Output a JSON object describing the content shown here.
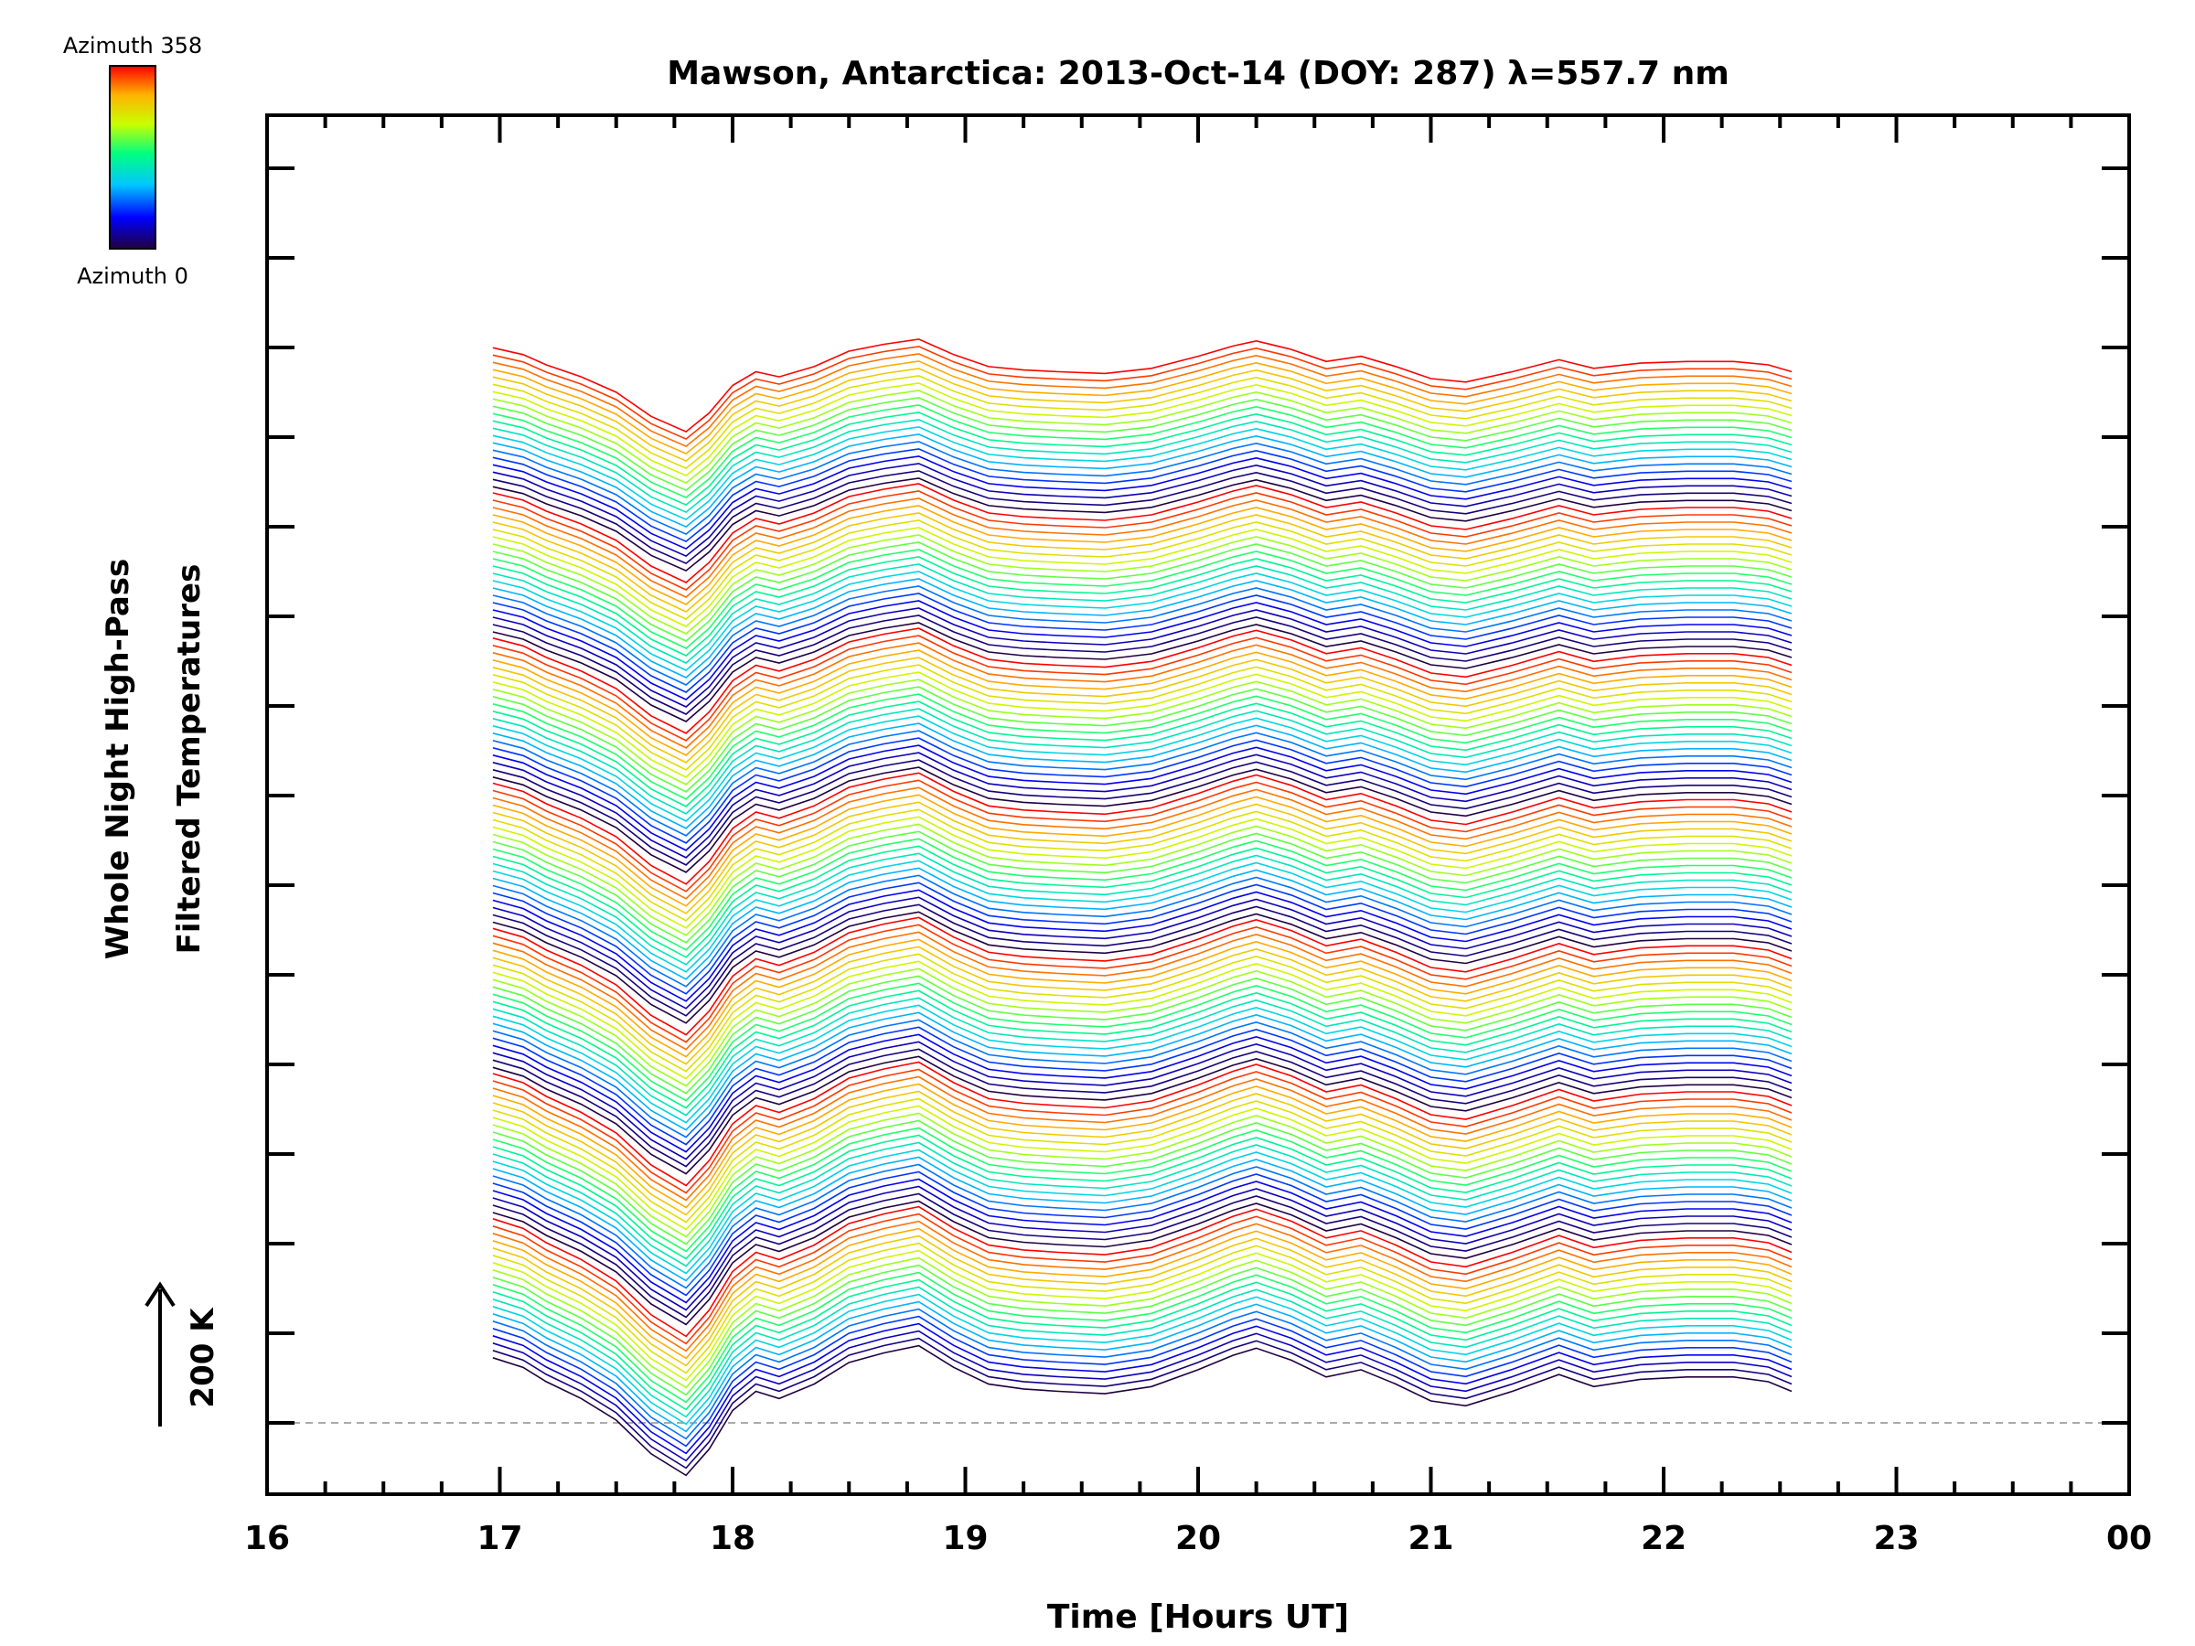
{
  "chart_data": {
    "type": "line",
    "title": "Mawson, Antarctica: 2013-Oct-14 (DOY: 287) λ=557.7 nm",
    "xlabel": "Time [Hours UT]",
    "ylabel": [
      "Whole Night High-Pass",
      "Filtered Temperatures"
    ],
    "xlim": [
      16,
      24
    ],
    "x_ticks": [
      "16",
      "17",
      "18",
      "19",
      "20",
      "21",
      "22",
      "23",
      "00"
    ],
    "scale_marker": {
      "label": "200 K",
      "direction": "up"
    },
    "colorbar": {
      "top_label": "Azimuth 358",
      "bottom_label": "Azimuth 0",
      "colormap": "rainbow",
      "colors": [
        "#200040",
        "#0000ff",
        "#00c8ff",
        "#00ff80",
        "#c8ff00",
        "#ffb400",
        "#ff0000"
      ]
    },
    "baseline_style": "dashed-grey",
    "grid": false,
    "legend": "none",
    "series_structure": {
      "blocks": 7,
      "series_per_block": 20,
      "block_order": "stacked bottom to top",
      "color_by": "azimuth 0 to 358 within each block (dark blue to red)"
    },
    "x": [
      16.97,
      17.1,
      17.2,
      17.35,
      17.5,
      17.65,
      17.8,
      17.9,
      18.0,
      18.1,
      18.2,
      18.35,
      18.5,
      18.65,
      18.8,
      18.95,
      19.1,
      19.25,
      19.4,
      19.6,
      19.8,
      20.0,
      20.15,
      20.25,
      20.4,
      20.55,
      20.7,
      20.85,
      21.0,
      21.15,
      21.35,
      21.55,
      21.7,
      21.9,
      22.1,
      22.3,
      22.45,
      22.55
    ],
    "base_profile_K": [
      50,
      30,
      0,
      -35,
      -80,
      -150,
      -195,
      -140,
      -60,
      -20,
      -35,
      -5,
      40,
      60,
      75,
      30,
      -5,
      -15,
      -20,
      -25,
      -10,
      25,
      55,
      70,
      45,
      10,
      25,
      -5,
      -40,
      -50,
      -20,
      15,
      -10,
      5,
      10,
      10,
      0,
      -20
    ],
    "offset_K_per_series": 16,
    "series": [
      {
        "block": 1,
        "azimuth_range": [
          0,
          358
        ],
        "amplitude_scale": 1.05,
        "count": 20
      },
      {
        "block": 2,
        "azimuth_range": [
          0,
          358
        ],
        "amplitude_scale": 1.0,
        "count": 20
      },
      {
        "block": 3,
        "azimuth_range": [
          0,
          358
        ],
        "amplitude_scale": 0.95,
        "count": 20
      },
      {
        "block": 4,
        "azimuth_range": [
          0,
          358
        ],
        "amplitude_scale": 0.9,
        "count": 20
      },
      {
        "block": 5,
        "azimuth_range": [
          0,
          358
        ],
        "amplitude_scale": 0.85,
        "count": 20
      },
      {
        "block": 6,
        "azimuth_range": [
          0,
          358
        ],
        "amplitude_scale": 0.8,
        "count": 20
      },
      {
        "block": 7,
        "azimuth_range": [
          0,
          358
        ],
        "amplitude_scale": 0.75,
        "count": 20
      }
    ]
  }
}
